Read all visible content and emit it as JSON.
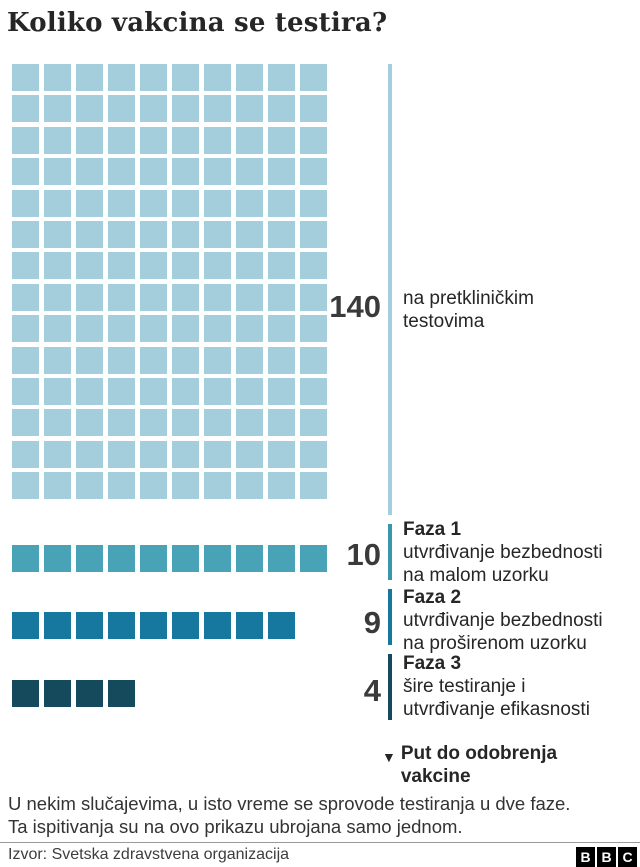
{
  "header": {
    "title": "Koliko vakcina se testira?"
  },
  "chart_data": {
    "type": "waffle",
    "title": "Koliko vakcina se testira?",
    "legend_position": "right",
    "groups": [
      {
        "name": "pretklinicki",
        "count": 140,
        "columns": 10,
        "value_label": "140",
        "phase_label": "",
        "desc_lines": [
          "na pretkliničkim",
          "testovima"
        ],
        "square_color": "#a4cedb",
        "line_color": "#a4cedb"
      },
      {
        "name": "faza-1",
        "count": 10,
        "columns": 10,
        "value_label": "10",
        "phase_label": "Faza 1",
        "desc_lines": [
          "utvrđivanje bezbednosti",
          "na malom uzorku"
        ],
        "square_color": "#48a3b6",
        "line_color": "#3996ab"
      },
      {
        "name": "faza-2",
        "count": 9,
        "columns": 9,
        "value_label": "9",
        "phase_label": "Faza 2",
        "desc_lines": [
          "utvrđivanje bezbednosti",
          "na proširenom uzorku"
        ],
        "square_color": "#17789f",
        "line_color": "#17789f"
      },
      {
        "name": "faza-3",
        "count": 4,
        "columns": 4,
        "value_label": "4",
        "phase_label": "Faza 3",
        "desc_lines": [
          "šire testiranje i",
          "utvrđivanje efikasnosti"
        ],
        "square_color": "#144a5c",
        "line_color": "#144a5c"
      }
    ],
    "path_annotation": {
      "arrow": "▼",
      "lines": [
        "Put do odobrenja",
        "vakcine"
      ]
    }
  },
  "footnote": {
    "lines": [
      "U nekim slučajevima, u isto vreme se sprovode testiranja u dve faze.",
      "Ta ispitivanja su na ovo prikazu ubrojana samo jednom."
    ]
  },
  "footer": {
    "source": "Izvor: Svetska zdravstvena organizacija",
    "logo_letters": [
      "B",
      "B",
      "C"
    ]
  }
}
